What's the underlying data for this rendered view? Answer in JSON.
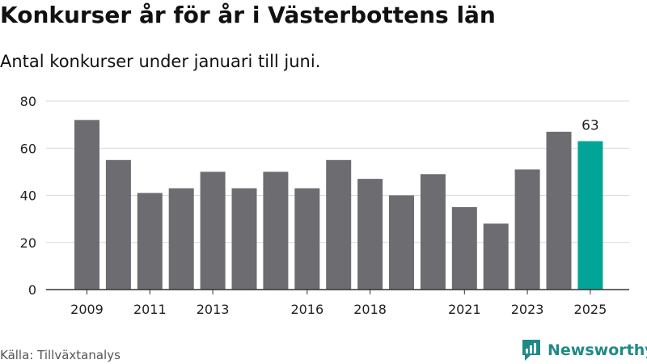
{
  "header": {
    "title": "Konkurser år för år i Västerbottens län",
    "subtitle": "Antal konkurser under januari till juni."
  },
  "footer": {
    "source": "Källa: Tillväxtanalys",
    "brand": "Newsworthy"
  },
  "colors": {
    "bar": "#6d6c71",
    "highlight": "#00a598",
    "grid": "#d9d9d9",
    "axis": "#333333",
    "brand": "#1e8a88"
  },
  "chart_data": {
    "type": "bar",
    "categories": [
      "2009",
      "2010",
      "2011",
      "2012",
      "2013",
      "2014",
      "2015",
      "2016",
      "2017",
      "2018",
      "2019",
      "2020",
      "2021",
      "2022",
      "2023",
      "2024",
      "2025"
    ],
    "tick_labels": [
      "2009",
      "",
      "2011",
      "",
      "2013",
      "",
      "",
      "2016",
      "",
      "2018",
      "",
      "",
      "2021",
      "",
      "2023",
      "",
      "2025"
    ],
    "values": [
      72,
      55,
      41,
      43,
      50,
      43,
      50,
      43,
      55,
      47,
      40,
      49,
      35,
      28,
      51,
      67,
      63
    ],
    "highlight_index": 16,
    "data_labels": [
      "",
      "",
      "",
      "",
      "",
      "",
      "",
      "",
      "",
      "",
      "",
      "",
      "",
      "",
      "",
      "",
      "63"
    ],
    "ylim": [
      0,
      80
    ],
    "yticks": [
      0,
      20,
      40,
      60,
      80
    ],
    "grid": true,
    "legend": "none"
  }
}
